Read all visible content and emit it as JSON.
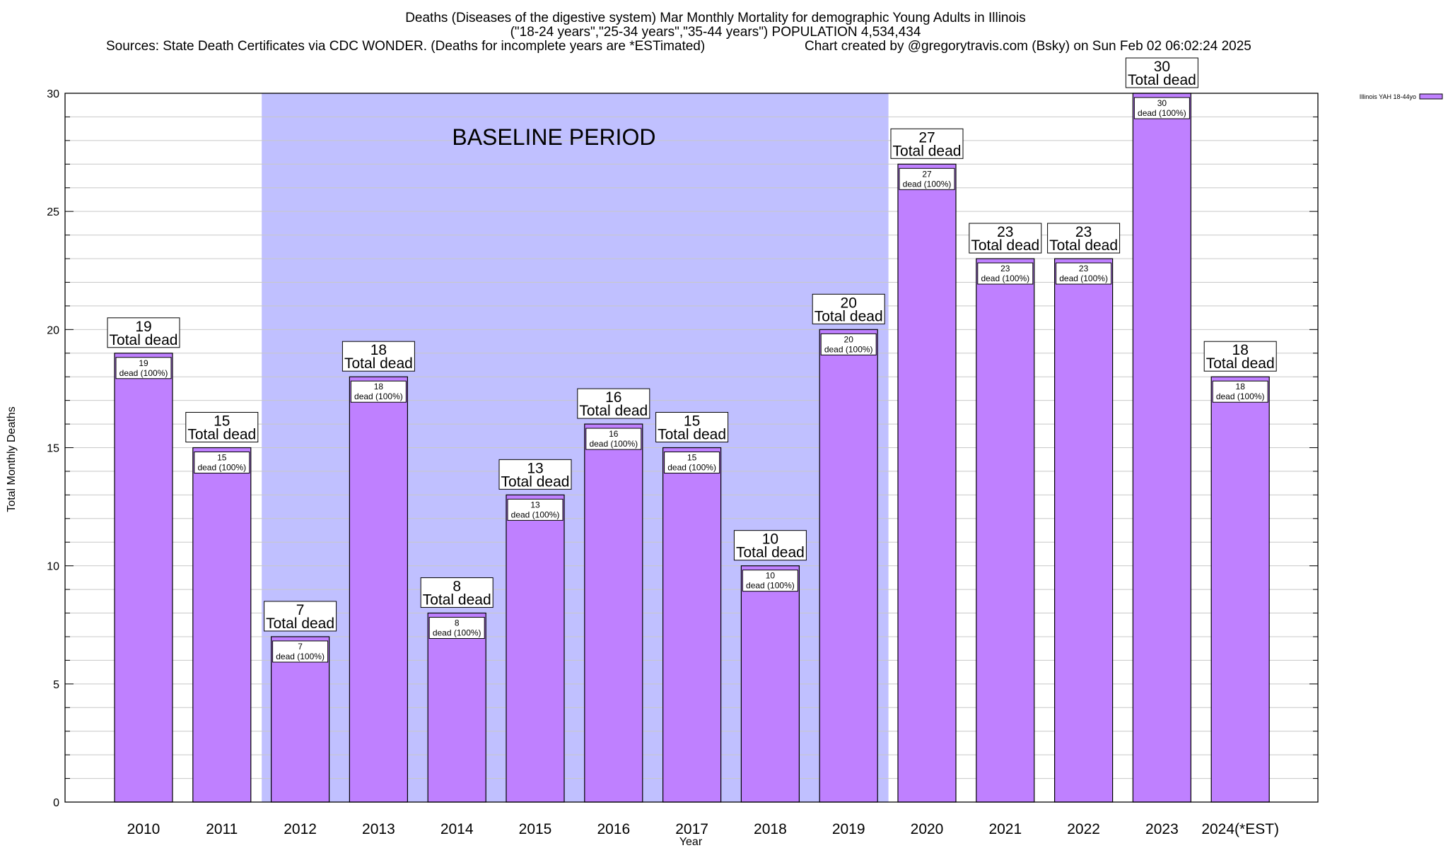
{
  "colors": {
    "bar": "#bf80ff",
    "baseline_band": "#c0c0ff",
    "grid": "#c8c8c8",
    "axis": "#000000",
    "background": "#ffffff"
  },
  "chart_data": {
    "type": "bar",
    "title_lines": [
      "Deaths (Diseases of the digestive system) Mar Monthly Mortality for demographic Young Adults in Illinois",
      "(\"18-24 years\",\"25-34 years\",\"35-44 years\") POPULATION 4,534,434"
    ],
    "sources_text": "Sources: State Death Certificates via CDC WONDER. (Deaths for incomplete years are *ESTimated)",
    "credit_text": "Chart created by @gregorytravis.com (Bsky) on Sun Feb 02 06:02:24 2025",
    "xlabel": "Year",
    "ylabel": "Total Monthly Deaths",
    "ylim": [
      0,
      30
    ],
    "major_ticks": [
      0,
      5,
      10,
      15,
      20,
      25,
      30
    ],
    "grid": true,
    "categories": [
      "2010",
      "2011",
      "2012",
      "2013",
      "2014",
      "2015",
      "2016",
      "2017",
      "2018",
      "2019",
      "2020",
      "2021",
      "2022",
      "2023",
      "2024(*EST)"
    ],
    "series": [
      {
        "name": "Illinois YAH 18-44yo",
        "values": [
          19,
          15,
          7,
          18,
          8,
          13,
          16,
          15,
          10,
          20,
          27,
          23,
          23,
          30,
          18
        ]
      }
    ],
    "total_label_suffix": "Total dead",
    "inner_label_suffix": "dead (100%)",
    "baseline": {
      "label": "BASELINE PERIOD",
      "start": "2012",
      "end": "2019"
    },
    "legend": {
      "position": "top-right",
      "label": "Illinois YAH 18-44yo"
    }
  }
}
